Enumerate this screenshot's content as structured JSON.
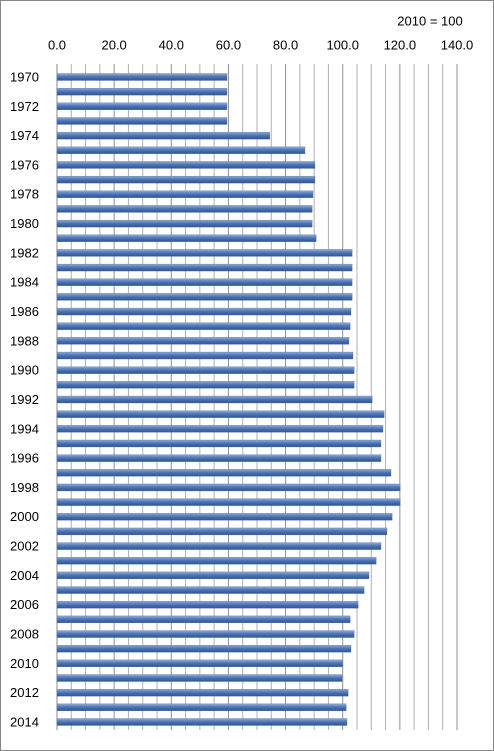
{
  "chart_data": {
    "type": "bar",
    "orientation": "horizontal",
    "annotation": "2010 = 100",
    "categories": [
      "1970",
      null,
      "1972",
      null,
      "1974",
      null,
      "1976",
      null,
      "1978",
      null,
      "1980",
      null,
      "1982",
      null,
      "1984",
      null,
      "1986",
      null,
      "1988",
      null,
      "1990",
      null,
      "1992",
      null,
      "1994",
      null,
      "1996",
      null,
      "1998",
      null,
      "2000",
      null,
      "2002",
      null,
      "2004",
      null,
      "2006",
      null,
      "2008",
      null,
      "2010",
      null,
      "2012",
      null,
      "2014"
    ],
    "values": [
      59.5,
      59.5,
      59.5,
      59.5,
      74.5,
      86.8,
      90.3,
      90.3,
      89.6,
      89.3,
      89.3,
      90.7,
      103.3,
      103.3,
      103.3,
      103.3,
      102.9,
      102.6,
      102.2,
      103.6,
      104.0,
      104.0,
      110.3,
      114.5,
      114.1,
      113.4,
      113.4,
      116.9,
      120.1,
      120.1,
      117.3,
      115.5,
      113.4,
      111.7,
      109.2,
      107.5,
      105.4,
      102.6,
      104.0,
      102.9,
      100.0,
      99.8,
      101.9,
      101.2,
      101.5
    ],
    "color": "#4a72b0",
    "xlim": [
      0,
      140
    ],
    "xticks": [
      {
        "value": 0,
        "label": "0.0"
      },
      {
        "value": 20,
        "label": "20.0"
      },
      {
        "value": 40,
        "label": "40.0"
      },
      {
        "value": 60,
        "label": "60.0"
      },
      {
        "value": 80,
        "label": "80.0"
      },
      {
        "value": 100,
        "label": "100.0"
      },
      {
        "value": 120,
        "label": "120.0"
      },
      {
        "value": 140,
        "label": "140.0"
      }
    ],
    "grid": true
  }
}
